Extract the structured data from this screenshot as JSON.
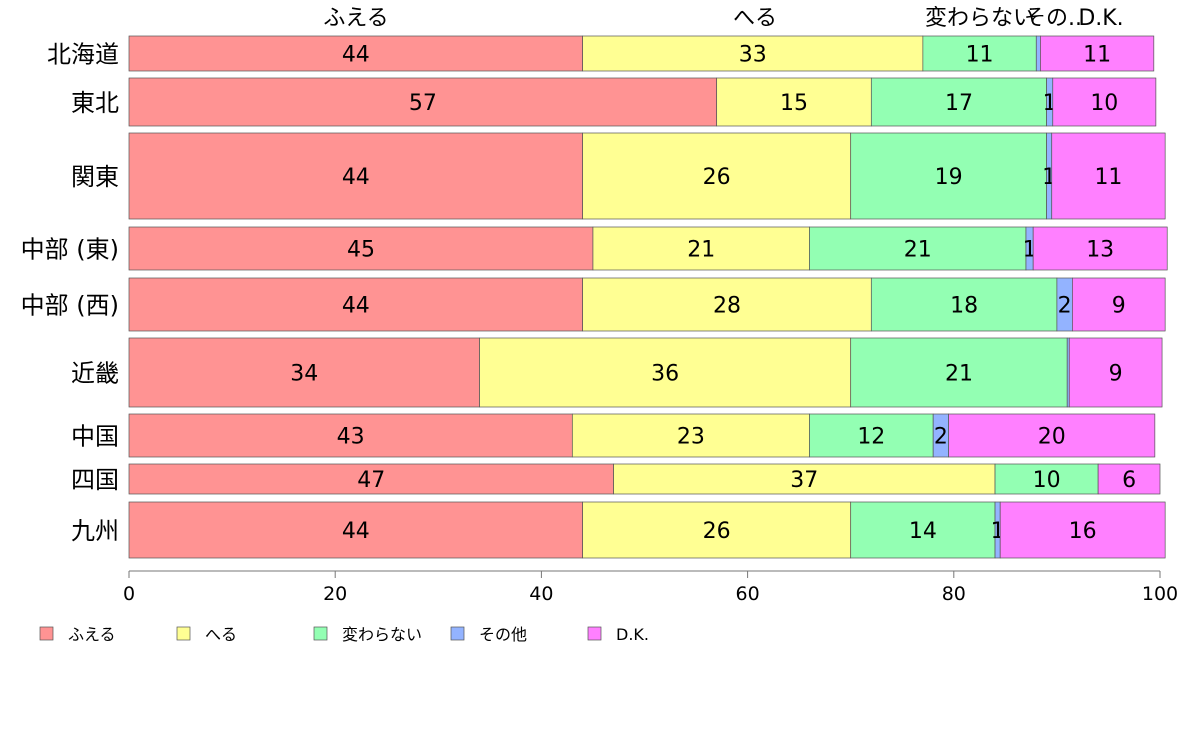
{
  "chart_data": {
    "type": "bar",
    "orientation": "horizontal",
    "stacked": true,
    "categories": [
      "北海道",
      "東北",
      "関東",
      "中部 (東)",
      "中部 (西)",
      "近畿",
      "中国",
      "四国",
      "九州"
    ],
    "series": [
      {
        "name": "ふえる",
        "color": "#ff9393",
        "values": [
          44,
          57,
          44,
          45,
          44,
          34,
          43,
          47,
          44
        ]
      },
      {
        "name": "へる",
        "color": "#ffff93",
        "values": [
          33,
          15,
          26,
          21,
          28,
          36,
          23,
          37,
          26
        ]
      },
      {
        "name": "変わらない",
        "color": "#93ffb3",
        "values": [
          11,
          17,
          19,
          21,
          18,
          21,
          12,
          10,
          14
        ]
      },
      {
        "name": "その他",
        "color": "#93b3ff",
        "values": [
          0.4,
          0.6,
          0.5,
          0.7,
          1.5,
          0.2,
          1.5,
          0,
          0.5
        ]
      },
      {
        "name": "D.K.",
        "color": "#ff80ff",
        "values": [
          11,
          10,
          11,
          13,
          9,
          9,
          20,
          6,
          16
        ]
      }
    ],
    "data_labels": [
      [
        "44",
        "33",
        "11",
        "",
        "11"
      ],
      [
        "57",
        "15",
        "17",
        "1",
        "10"
      ],
      [
        "44",
        "26",
        "19",
        "1",
        "11"
      ],
      [
        "45",
        "21",
        "21",
        "1",
        "13"
      ],
      [
        "44",
        "28",
        "18",
        "2",
        "9"
      ],
      [
        "34",
        "36",
        "21",
        "",
        "9"
      ],
      [
        "43",
        "23",
        "12",
        "2",
        "20"
      ],
      [
        "47",
        "37",
        "10",
        "",
        "6"
      ],
      [
        "44",
        "26",
        "14",
        "1",
        "16"
      ]
    ],
    "top_labels": [
      "ふえる",
      "へる",
      "変わらない",
      "その..",
      "D.K."
    ],
    "xlim": [
      0,
      100
    ],
    "xticks": [
      "0",
      "20",
      "40",
      "60",
      "80",
      "100"
    ],
    "legend": [
      "ふえる",
      "へる",
      "変わらない",
      "その他",
      "D.K."
    ],
    "legend_position": "bottom-left"
  }
}
